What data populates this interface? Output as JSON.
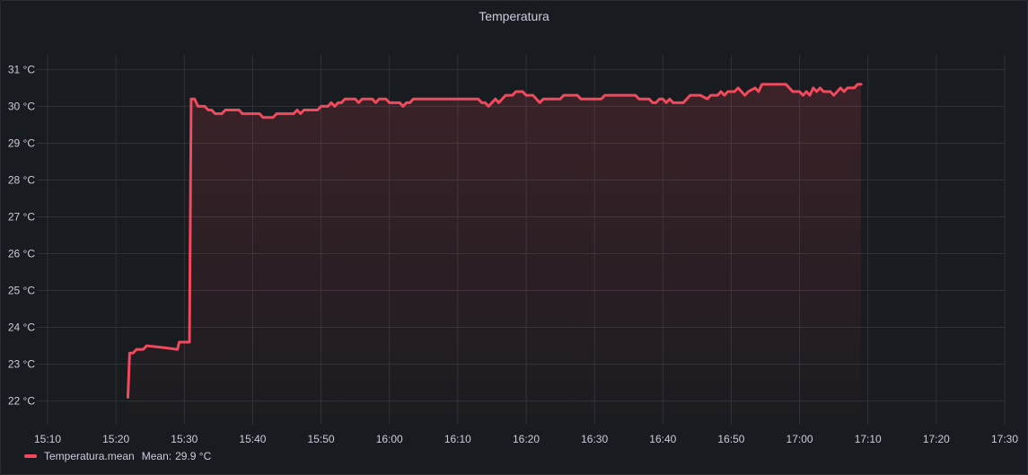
{
  "panel": {
    "title": "Temperatura"
  },
  "colors": {
    "series": "#f2495c",
    "background": "#181b1f",
    "grid": "#2f3238",
    "text": "#ccccdc"
  },
  "legend": {
    "series_name": "Temperatura.mean",
    "mean_label": "Mean:",
    "mean_value": "29.9 °C"
  },
  "chart_data": {
    "type": "area",
    "title": "Temperatura",
    "xlabel": "",
    "ylabel": "",
    "x_unit": "time (HH:MM)",
    "y_unit": "°C",
    "xlim": [
      "15:10",
      "17:30"
    ],
    "ylim": [
      21.6,
      31.4
    ],
    "x_ticks": [
      "15:10",
      "15:20",
      "15:30",
      "15:40",
      "15:50",
      "16:00",
      "16:10",
      "16:20",
      "16:30",
      "16:40",
      "16:50",
      "17:00",
      "17:10",
      "17:20",
      "17:30"
    ],
    "y_ticks": [
      "22 °C",
      "23 °C",
      "24 °C",
      "25 °C",
      "26 °C",
      "27 °C",
      "28 °C",
      "29 °C",
      "30 °C",
      "31 °C"
    ],
    "y_tick_values": [
      22,
      23,
      24,
      25,
      26,
      27,
      28,
      29,
      30,
      31
    ],
    "grid": true,
    "legend_position": "bottom-left",
    "series": [
      {
        "name": "Temperatura.mean",
        "color": "#f2495c",
        "points": [
          [
            "15:21:45",
            22.1
          ],
          [
            "15:22:00",
            23.3
          ],
          [
            "15:22:30",
            23.3
          ],
          [
            "15:23:00",
            23.4
          ],
          [
            "15:24:00",
            23.4
          ],
          [
            "15:24:30",
            23.5
          ],
          [
            "15:27:00",
            23.45
          ],
          [
            "15:29:00",
            23.4
          ],
          [
            "15:29:15",
            23.6
          ],
          [
            "15:30:45",
            23.6
          ],
          [
            "15:31:00",
            30.2
          ],
          [
            "15:31:30",
            30.2
          ],
          [
            "15:32:00",
            30.0
          ],
          [
            "15:33:00",
            30.0
          ],
          [
            "15:33:30",
            29.9
          ],
          [
            "15:34:00",
            29.9
          ],
          [
            "15:34:30",
            29.8
          ],
          [
            "15:35:30",
            29.8
          ],
          [
            "15:36:00",
            29.9
          ],
          [
            "15:38:00",
            29.9
          ],
          [
            "15:38:30",
            29.8
          ],
          [
            "15:41:00",
            29.8
          ],
          [
            "15:41:30",
            29.7
          ],
          [
            "15:43:00",
            29.7
          ],
          [
            "15:43:30",
            29.8
          ],
          [
            "15:46:00",
            29.8
          ],
          [
            "15:46:30",
            29.9
          ],
          [
            "15:47:00",
            29.8
          ],
          [
            "15:47:30",
            29.9
          ],
          [
            "15:49:30",
            29.9
          ],
          [
            "15:50:00",
            30.0
          ],
          [
            "15:51:00",
            30.0
          ],
          [
            "15:51:30",
            30.1
          ],
          [
            "15:52:00",
            30.0
          ],
          [
            "15:52:30",
            30.1
          ],
          [
            "15:53:00",
            30.1
          ],
          [
            "15:53:30",
            30.2
          ],
          [
            "15:55:00",
            30.2
          ],
          [
            "15:55:30",
            30.1
          ],
          [
            "15:56:00",
            30.2
          ],
          [
            "15:57:30",
            30.2
          ],
          [
            "15:58:00",
            30.1
          ],
          [
            "15:58:30",
            30.2
          ],
          [
            "15:59:30",
            30.2
          ],
          [
            "16:00:00",
            30.1
          ],
          [
            "16:01:30",
            30.1
          ],
          [
            "16:02:00",
            30.0
          ],
          [
            "16:02:30",
            30.1
          ],
          [
            "16:03:00",
            30.1
          ],
          [
            "16:03:30",
            30.2
          ],
          [
            "16:13:00",
            30.2
          ],
          [
            "16:13:30",
            30.1
          ],
          [
            "16:14:00",
            30.1
          ],
          [
            "16:14:30",
            30.0
          ],
          [
            "16:15:00",
            30.1
          ],
          [
            "16:15:30",
            30.2
          ],
          [
            "16:16:00",
            30.1
          ],
          [
            "16:16:30",
            30.2
          ],
          [
            "16:17:00",
            30.3
          ],
          [
            "16:18:00",
            30.3
          ],
          [
            "16:18:30",
            30.4
          ],
          [
            "16:19:30",
            30.4
          ],
          [
            "16:20:00",
            30.3
          ],
          [
            "16:21:00",
            30.3
          ],
          [
            "16:21:30",
            30.2
          ],
          [
            "16:22:00",
            30.1
          ],
          [
            "16:22:30",
            30.2
          ],
          [
            "16:25:00",
            30.2
          ],
          [
            "16:25:30",
            30.3
          ],
          [
            "16:27:30",
            30.3
          ],
          [
            "16:28:00",
            30.2
          ],
          [
            "16:31:00",
            30.2
          ],
          [
            "16:31:30",
            30.3
          ],
          [
            "16:36:00",
            30.3
          ],
          [
            "16:36:30",
            30.2
          ],
          [
            "16:38:00",
            30.2
          ],
          [
            "16:38:30",
            30.1
          ],
          [
            "16:39:00",
            30.1
          ],
          [
            "16:39:30",
            30.2
          ],
          [
            "16:40:00",
            30.2
          ],
          [
            "16:40:30",
            30.1
          ],
          [
            "16:41:00",
            30.2
          ],
          [
            "16:41:30",
            30.1
          ],
          [
            "16:43:00",
            30.1
          ],
          [
            "16:43:30",
            30.2
          ],
          [
            "16:44:00",
            30.3
          ],
          [
            "16:45:30",
            30.3
          ],
          [
            "16:46:30",
            30.2
          ],
          [
            "16:47:00",
            30.3
          ],
          [
            "16:48:00",
            30.3
          ],
          [
            "16:48:30",
            30.4
          ],
          [
            "16:49:00",
            30.3
          ],
          [
            "16:49:30",
            30.4
          ],
          [
            "16:50:30",
            30.4
          ],
          [
            "16:51:00",
            30.5
          ],
          [
            "16:51:30",
            30.4
          ],
          [
            "16:52:00",
            30.3
          ],
          [
            "16:52:30",
            30.4
          ],
          [
            "16:53:30",
            30.5
          ],
          [
            "16:54:00",
            30.4
          ],
          [
            "16:54:30",
            30.6
          ],
          [
            "16:58:00",
            30.6
          ],
          [
            "16:58:30",
            30.5
          ],
          [
            "16:59:00",
            30.4
          ],
          [
            "17:00:00",
            30.4
          ],
          [
            "17:00:30",
            30.3
          ],
          [
            "17:01:00",
            30.4
          ],
          [
            "17:01:30",
            30.3
          ],
          [
            "17:02:00",
            30.5
          ],
          [
            "17:02:30",
            30.4
          ],
          [
            "17:03:00",
            30.5
          ],
          [
            "17:03:30",
            30.4
          ],
          [
            "17:04:00",
            30.4
          ],
          [
            "17:04:30",
            30.4
          ],
          [
            "17:05:00",
            30.3
          ],
          [
            "17:05:30",
            30.4
          ],
          [
            "17:06:00",
            30.5
          ],
          [
            "17:06:30",
            30.4
          ],
          [
            "17:07:00",
            30.5
          ],
          [
            "17:08:00",
            30.5
          ],
          [
            "17:08:30",
            30.6
          ],
          [
            "17:09:00",
            30.6
          ]
        ]
      }
    ]
  }
}
